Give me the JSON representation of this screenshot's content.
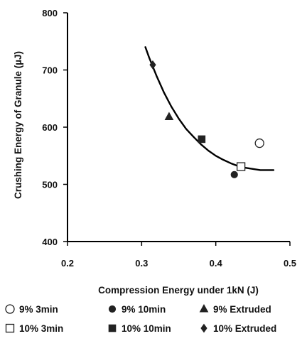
{
  "chart_data": {
    "type": "scatter",
    "xlabel": "Compression Energy under 1kN (J)",
    "ylabel": "Crushing Energy of Granule (µJ)",
    "xlim": [
      0.2,
      0.5
    ],
    "ylim": [
      400,
      800
    ],
    "x_ticks": [
      "0.2",
      "0.3",
      "0.4",
      "0.5"
    ],
    "y_ticks": [
      "400",
      "500",
      "600",
      "700",
      "800"
    ],
    "grid": false,
    "legend_position": "bottom",
    "series": [
      {
        "name": "9% 3min",
        "marker": "circle-open",
        "points": [
          {
            "x": 0.459,
            "y": 572
          }
        ]
      },
      {
        "name": "9% 10min",
        "marker": "circle-filled",
        "points": [
          {
            "x": 0.425,
            "y": 517
          }
        ]
      },
      {
        "name": "9% Extruded",
        "marker": "triangle-filled",
        "points": [
          {
            "x": 0.337,
            "y": 618
          }
        ]
      },
      {
        "name": "10% 3min",
        "marker": "square-open",
        "points": [
          {
            "x": 0.434,
            "y": 531
          }
        ]
      },
      {
        "name": "10% 10min",
        "marker": "square-filled",
        "points": [
          {
            "x": 0.381,
            "y": 579
          }
        ]
      },
      {
        "name": "10% Extruded",
        "marker": "diamond-filled",
        "points": [
          {
            "x": 0.315,
            "y": 709
          }
        ]
      }
    ],
    "fit_curve": {
      "points": [
        {
          "x": 0.305,
          "y": 740
        },
        {
          "x": 0.31,
          "y": 722
        },
        {
          "x": 0.32,
          "y": 690
        },
        {
          "x": 0.33,
          "y": 661
        },
        {
          "x": 0.34,
          "y": 636
        },
        {
          "x": 0.35,
          "y": 615
        },
        {
          "x": 0.36,
          "y": 597
        },
        {
          "x": 0.37,
          "y": 583
        },
        {
          "x": 0.38,
          "y": 570
        },
        {
          "x": 0.39,
          "y": 559
        },
        {
          "x": 0.4,
          "y": 550
        },
        {
          "x": 0.41,
          "y": 543
        },
        {
          "x": 0.42,
          "y": 537
        },
        {
          "x": 0.43,
          "y": 532
        },
        {
          "x": 0.44,
          "y": 529
        },
        {
          "x": 0.45,
          "y": 527
        },
        {
          "x": 0.46,
          "y": 525
        },
        {
          "x": 0.47,
          "y": 525
        },
        {
          "x": 0.478,
          "y": 525
        }
      ]
    },
    "legend": {
      "rows": [
        [
          {
            "marker": "circle-open",
            "label": "9% 3min"
          },
          {
            "marker": "circle-filled",
            "label": "9% 10min"
          },
          {
            "marker": "triangle-filled",
            "label": "9% Extruded"
          }
        ],
        [
          {
            "marker": "square-open",
            "label": "10% 3min"
          },
          {
            "marker": "square-filled",
            "label": "10% 10min"
          },
          {
            "marker": "diamond-filled",
            "label": "10% Extruded"
          }
        ]
      ]
    },
    "colors": {
      "marker_fill": "#222222",
      "marker_edge": "#222222",
      "curve": "#000000",
      "axis": "#000000"
    }
  }
}
